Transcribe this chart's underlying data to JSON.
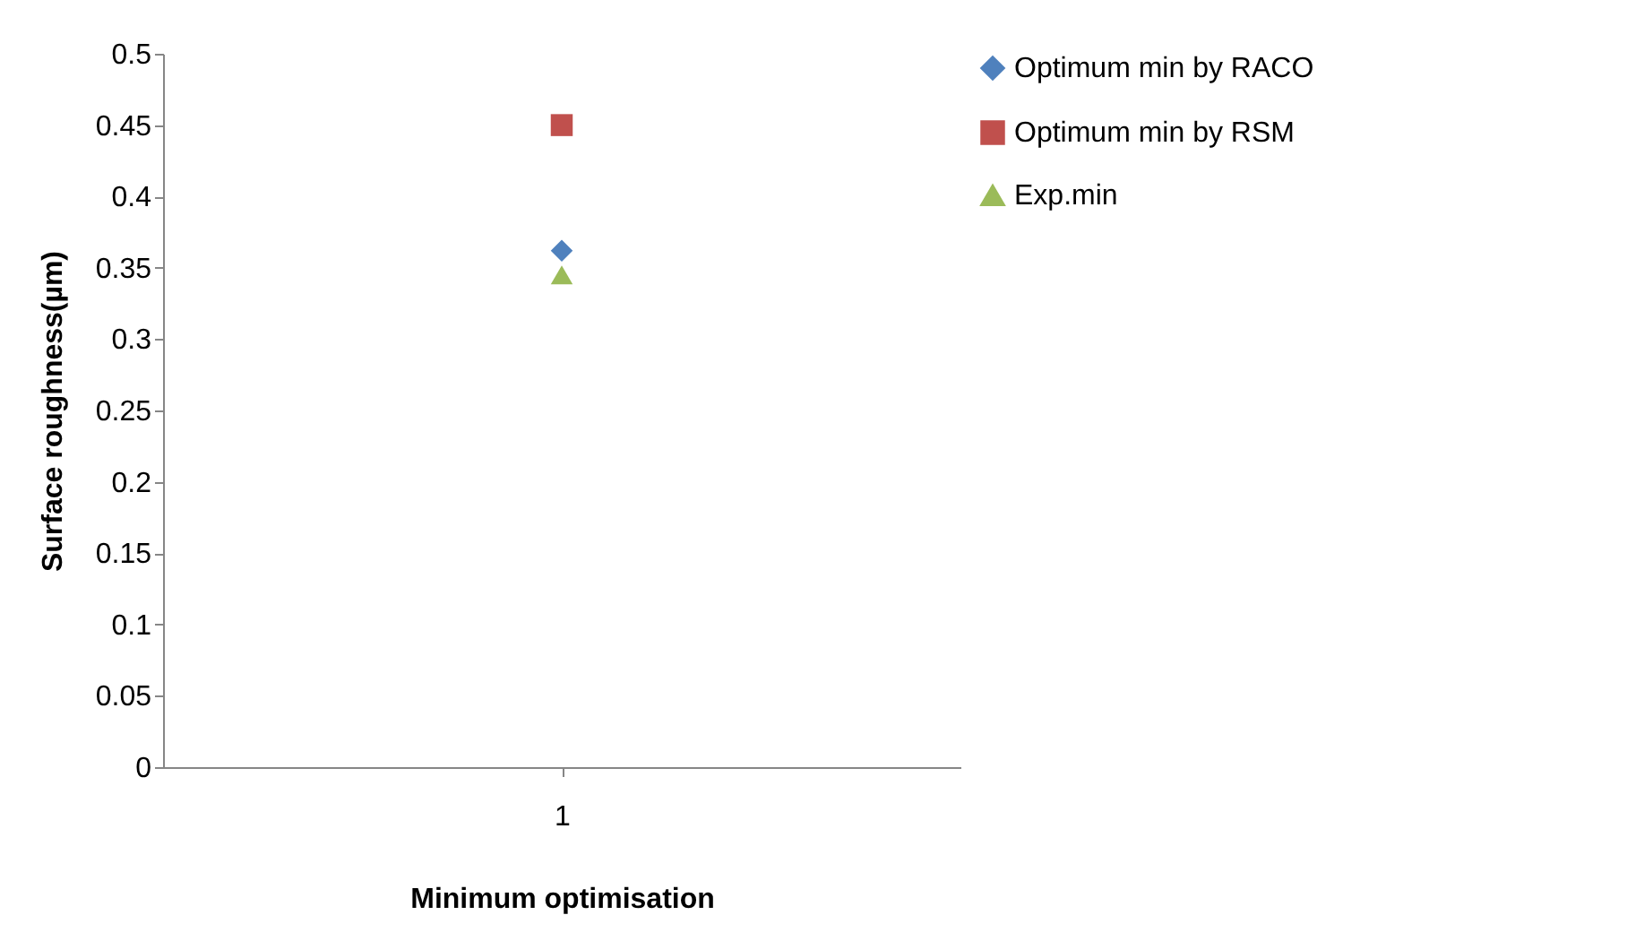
{
  "chart_data": {
    "type": "line",
    "xlabel": "Minimum optimisation",
    "ylabel": "Surface roughness(µm)",
    "categories": [
      "1"
    ],
    "series": [
      {
        "name": "Optimum min by RACO",
        "color": "#4f81bd",
        "marker": "diamond",
        "values": [
          0.362
        ]
      },
      {
        "name": "Optimum min by RSM",
        "color": "#c0504d",
        "marker": "square",
        "values": [
          0.45
        ]
      },
      {
        "name": "Exp.min",
        "color": "#9bbb59",
        "marker": "triangle",
        "values": [
          0.345
        ]
      }
    ],
    "ylim": [
      0,
      0.5
    ],
    "yticks": [
      0,
      0.05,
      0.1,
      0.15,
      0.2,
      0.25,
      0.3,
      0.35,
      0.4,
      0.45,
      0.5
    ],
    "grid": false,
    "legend": "right"
  }
}
